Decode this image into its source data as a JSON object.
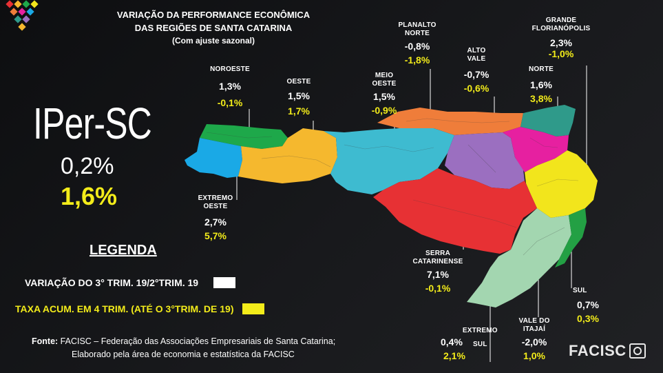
{
  "title": {
    "line1": "VARIAÇÃO DA PERFORMANCE ECONÔMICA",
    "line2": "DAS REGIÕES DE SANTA CATARINA",
    "line3": "(Com ajuste sazonal)"
  },
  "index": {
    "name": "IPer-SC",
    "variation": "0,2%",
    "accumulated": "1,6%"
  },
  "legend": {
    "title": "LEGENDA",
    "white_label": "VARIAÇÃO DO 3° TRIM. 19/2°TRIM. 19",
    "white_color": "#ffffff",
    "yellow_label": "TAXA ACUM. EM 4 TRIM. (ATÉ O 3°TRIM. DE 19)",
    "yellow_color": "#f3ec1a"
  },
  "source": {
    "label": "Fonte:",
    "line1": "FACISC – Federação das Associações Empresariais de Santa Catarina;",
    "line2": "Elaborado pela área de economia e estatística da FACISC"
  },
  "logo": "FACISC",
  "regions": {
    "noroeste": {
      "name1": "NOROESTE",
      "name2": "",
      "variation": "1,3%",
      "accumulated": "-0,1%",
      "color": "#1ea84a"
    },
    "oeste": {
      "name1": "OESTE",
      "name2": "",
      "variation": "1,5%",
      "accumulated": "1,7%",
      "color": "#f5b82e"
    },
    "extremo_oeste": {
      "name1": "EXTREMO",
      "name2": "OESTE",
      "variation": "2,7%",
      "accumulated": "5,7%",
      "color": "#1aa9e6"
    },
    "meio_oeste": {
      "name1": "MEIO",
      "name2": "OESTE",
      "variation": "1,5%",
      "accumulated": "-0,9%",
      "color": "#3ebbd0"
    },
    "planalto_norte": {
      "name1": "PLANALTO",
      "name2": "NORTE",
      "variation": "-0,8%",
      "accumulated": "-1,8%",
      "color": "#ef7d3a"
    },
    "alto_vale": {
      "name1": "ALTO",
      "name2": "VALE",
      "variation": "-0,7%",
      "accumulated": "-0,6%",
      "color": "#9b6fc0"
    },
    "norte": {
      "name1": "NORTE",
      "name2": "",
      "variation": "1,6%",
      "accumulated": "3,8%",
      "color": "#2f9a8a"
    },
    "grande_florianopolis": {
      "name1": "GRANDE",
      "name2": "FLORIANÓPOLIS",
      "variation": "2,3%",
      "accumulated": "-1,0%",
      "color": "#f2e51c"
    },
    "vale_do_itajai": {
      "name1": "VALE DO",
      "name2": "ITAJAÍ",
      "variation": "-2,0%",
      "accumulated": "1,0%",
      "color": "#e620a0"
    },
    "serra_catarinense": {
      "name1": "SERRA",
      "name2": "CATARINENSE",
      "variation": "7,1%",
      "accumulated": "-0,1%",
      "color": "#e73134"
    },
    "sul": {
      "name1": "SUL",
      "name2": "",
      "variation": "0,7%",
      "accumulated": "0,3%",
      "color": "#23a044"
    },
    "extremo_sul": {
      "name1": "EXTREMO",
      "name2": "SUL",
      "variation": "0,4%",
      "accumulated": "2,1%",
      "color": "#a3d6b0"
    }
  }
}
